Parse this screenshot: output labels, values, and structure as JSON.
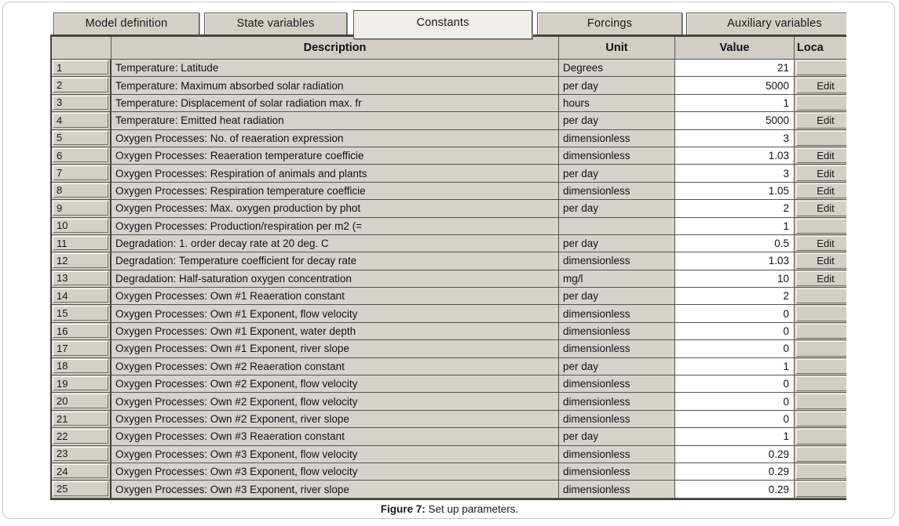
{
  "tabs": [
    {
      "label": "Model definition",
      "active": false
    },
    {
      "label": "State variables",
      "active": false
    },
    {
      "label": "Constants",
      "active": true
    },
    {
      "label": "Forcings",
      "active": false
    },
    {
      "label": "Auxiliary variables",
      "active": false
    }
  ],
  "table": {
    "headers": {
      "row_number": "",
      "description": "Description",
      "unit": "Unit",
      "value": "Value",
      "location": "Loca"
    },
    "edit_label": "Edit",
    "rows": [
      {
        "num": "1",
        "description": "Temperature: Latitude",
        "unit": "Degrees",
        "value": "21",
        "edit": false
      },
      {
        "num": "2",
        "description": "Temperature: Maximum absorbed solar radiation",
        "unit": "per day",
        "value": "5000",
        "edit": true
      },
      {
        "num": "3",
        "description": "Temperature: Displacement of solar radiation max. fr",
        "unit": "hours",
        "value": "1",
        "edit": false
      },
      {
        "num": "4",
        "description": "Temperature: Emitted heat radiation",
        "unit": "per day",
        "value": "5000",
        "edit": true
      },
      {
        "num": "5",
        "description": "Oxygen Processes: No. of reaeration expression",
        "unit": "dimensionless",
        "value": "3",
        "edit": false
      },
      {
        "num": "6",
        "description": "Oxygen Processes: Reaeration temperature coefficie",
        "unit": "dimensionless",
        "value": "1.03",
        "edit": true
      },
      {
        "num": "7",
        "description": "Oxygen Processes: Respiration of animals and plants",
        "unit": "per day",
        "value": "3",
        "edit": true
      },
      {
        "num": "8",
        "description": "Oxygen Processes: Respiration temperature coefficie",
        "unit": "dimensionless",
        "value": "1.05",
        "edit": true
      },
      {
        "num": "9",
        "description": "Oxygen Processes: Max. oxygen production by phot",
        "unit": "per day",
        "value": "2",
        "edit": true
      },
      {
        "num": "10",
        "description": "Oxygen Processes: Production/respiration per m2 (=",
        "unit": "",
        "value": "1",
        "edit": false
      },
      {
        "num": "11",
        "description": "Degradation: 1. order decay rate at 20 deg. C",
        "unit": "per day",
        "value": "0.5",
        "edit": true
      },
      {
        "num": "12",
        "description": "Degradation: Temperature coefficient for decay rate",
        "unit": "dimensionless",
        "value": "1.03",
        "edit": true
      },
      {
        "num": "13",
        "description": "Degradation: Half-saturation oxygen concentration",
        "unit": "mg/l",
        "value": "10",
        "edit": true
      },
      {
        "num": "14",
        "description": "Oxygen Processes: Own #1 Reaeration constant",
        "unit": "per day",
        "value": "2",
        "edit": false
      },
      {
        "num": "15",
        "description": "Oxygen Processes: Own #1 Exponent, flow velocity",
        "unit": "dimensionless",
        "value": "0",
        "edit": false
      },
      {
        "num": "16",
        "description": "Oxygen Processes: Own #1 Exponent, water depth",
        "unit": "dimensionless",
        "value": "0",
        "edit": false
      },
      {
        "num": "17",
        "description": "Oxygen Processes: Own #1 Exponent, river slope",
        "unit": "dimensionless",
        "value": "0",
        "edit": false
      },
      {
        "num": "18",
        "description": "Oxygen Processes: Own #2 Reaeration constant",
        "unit": "per day",
        "value": "1",
        "edit": false
      },
      {
        "num": "19",
        "description": "Oxygen Processes: Own #2 Exponent, flow velocity",
        "unit": "dimensionless",
        "value": "0",
        "edit": false
      },
      {
        "num": "20",
        "description": "Oxygen Processes: Own #2 Exponent, flow velocity",
        "unit": "dimensionless",
        "value": "0",
        "edit": false
      },
      {
        "num": "21",
        "description": "Oxygen Processes: Own #2 Exponent, river slope",
        "unit": "dimensionless",
        "value": "0",
        "edit": false
      },
      {
        "num": "22",
        "description": "Oxygen Processes: Own #3 Reaeration constant",
        "unit": "per day",
        "value": "1",
        "edit": false
      },
      {
        "num": "23",
        "description": "Oxygen Processes: Own #3 Exponent, flow velocity",
        "unit": "dimensionless",
        "value": "0.29",
        "edit": false
      },
      {
        "num": "24",
        "description": "Oxygen Processes: Own #3 Exponent, flow velocity",
        "unit": "dimensionless",
        "value": "0.29",
        "edit": false
      },
      {
        "num": "25",
        "description": "Oxygen Processes: Own #3 Exponent, river slope",
        "unit": "dimensionless",
        "value": "0.29",
        "edit": false
      }
    ]
  },
  "caption": {
    "label": "Figure 7:",
    "text": "Set up parameters."
  },
  "colors": {
    "chrome_gray": "#d4d0c8",
    "active_tab": "#f0eee8",
    "grid_border": "#46463f",
    "value_cell_bg": "#ffffff",
    "bottom_rule_blue": "#a9c9df"
  }
}
